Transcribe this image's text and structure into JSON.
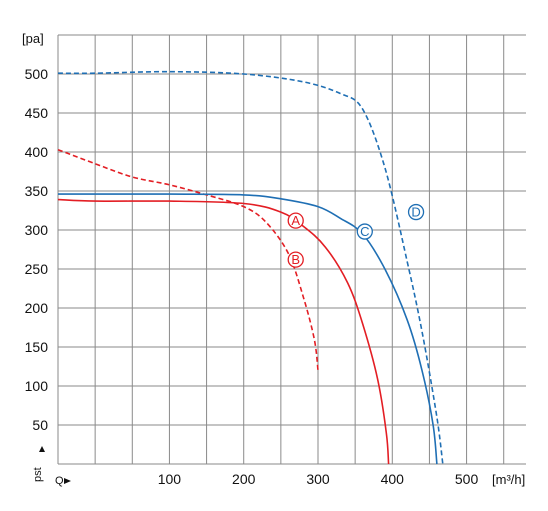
{
  "chart_data": {
    "type": "line",
    "title": "",
    "y_unit": "[pa]",
    "x_unit": "[m³/h]",
    "y_symbol": "pst",
    "x_symbol": "Q",
    "xlim": [
      -50,
      580
    ],
    "ylim": [
      0,
      550
    ],
    "grid": true,
    "x_ticks": [
      100,
      200,
      300,
      400,
      500
    ],
    "y_ticks": [
      50,
      100,
      150,
      200,
      250,
      300,
      350,
      400,
      450,
      500
    ],
    "colors": {
      "red": "#e31e24",
      "blue": "#1f6fb4",
      "grid": "#8a8a8a"
    },
    "series": [
      {
        "name": "A",
        "color": "#e31e24",
        "dashed": false,
        "points": [
          [
            -50,
            339
          ],
          [
            0,
            337
          ],
          [
            100,
            337
          ],
          [
            200,
            334
          ],
          [
            250,
            323
          ],
          [
            280,
            305
          ],
          [
            310,
            278
          ],
          [
            340,
            232
          ],
          [
            360,
            180
          ],
          [
            380,
            110
          ],
          [
            392,
            40
          ],
          [
            395,
            0
          ]
        ],
        "label_at": [
          270,
          312
        ]
      },
      {
        "name": "B",
        "color": "#e31e24",
        "dashed": true,
        "points": [
          [
            -50,
            403
          ],
          [
            0,
            385
          ],
          [
            50,
            368
          ],
          [
            100,
            358
          ],
          [
            150,
            345
          ],
          [
            200,
            330
          ],
          [
            230,
            310
          ],
          [
            260,
            270
          ],
          [
            280,
            215
          ],
          [
            295,
            160
          ],
          [
            300,
            120
          ]
        ],
        "label_at": [
          270,
          262
        ]
      },
      {
        "name": "C",
        "color": "#1f6fb4",
        "dashed": false,
        "points": [
          [
            -50,
            346
          ],
          [
            100,
            346
          ],
          [
            200,
            345
          ],
          [
            250,
            340
          ],
          [
            300,
            330
          ],
          [
            330,
            315
          ],
          [
            360,
            295
          ],
          [
            390,
            250
          ],
          [
            420,
            185
          ],
          [
            440,
            120
          ],
          [
            455,
            50
          ],
          [
            460,
            0
          ]
        ],
        "label_at": [
          363,
          298
        ]
      },
      {
        "name": "D",
        "color": "#1f6fb4",
        "dashed": true,
        "points": [
          [
            -50,
            501
          ],
          [
            0,
            501
          ],
          [
            100,
            503
          ],
          [
            200,
            500
          ],
          [
            280,
            490
          ],
          [
            330,
            475
          ],
          [
            360,
            455
          ],
          [
            390,
            380
          ],
          [
            420,
            260
          ],
          [
            440,
            170
          ],
          [
            460,
            60
          ],
          [
            468,
            0
          ]
        ],
        "label_at": [
          432,
          323
        ]
      }
    ]
  }
}
